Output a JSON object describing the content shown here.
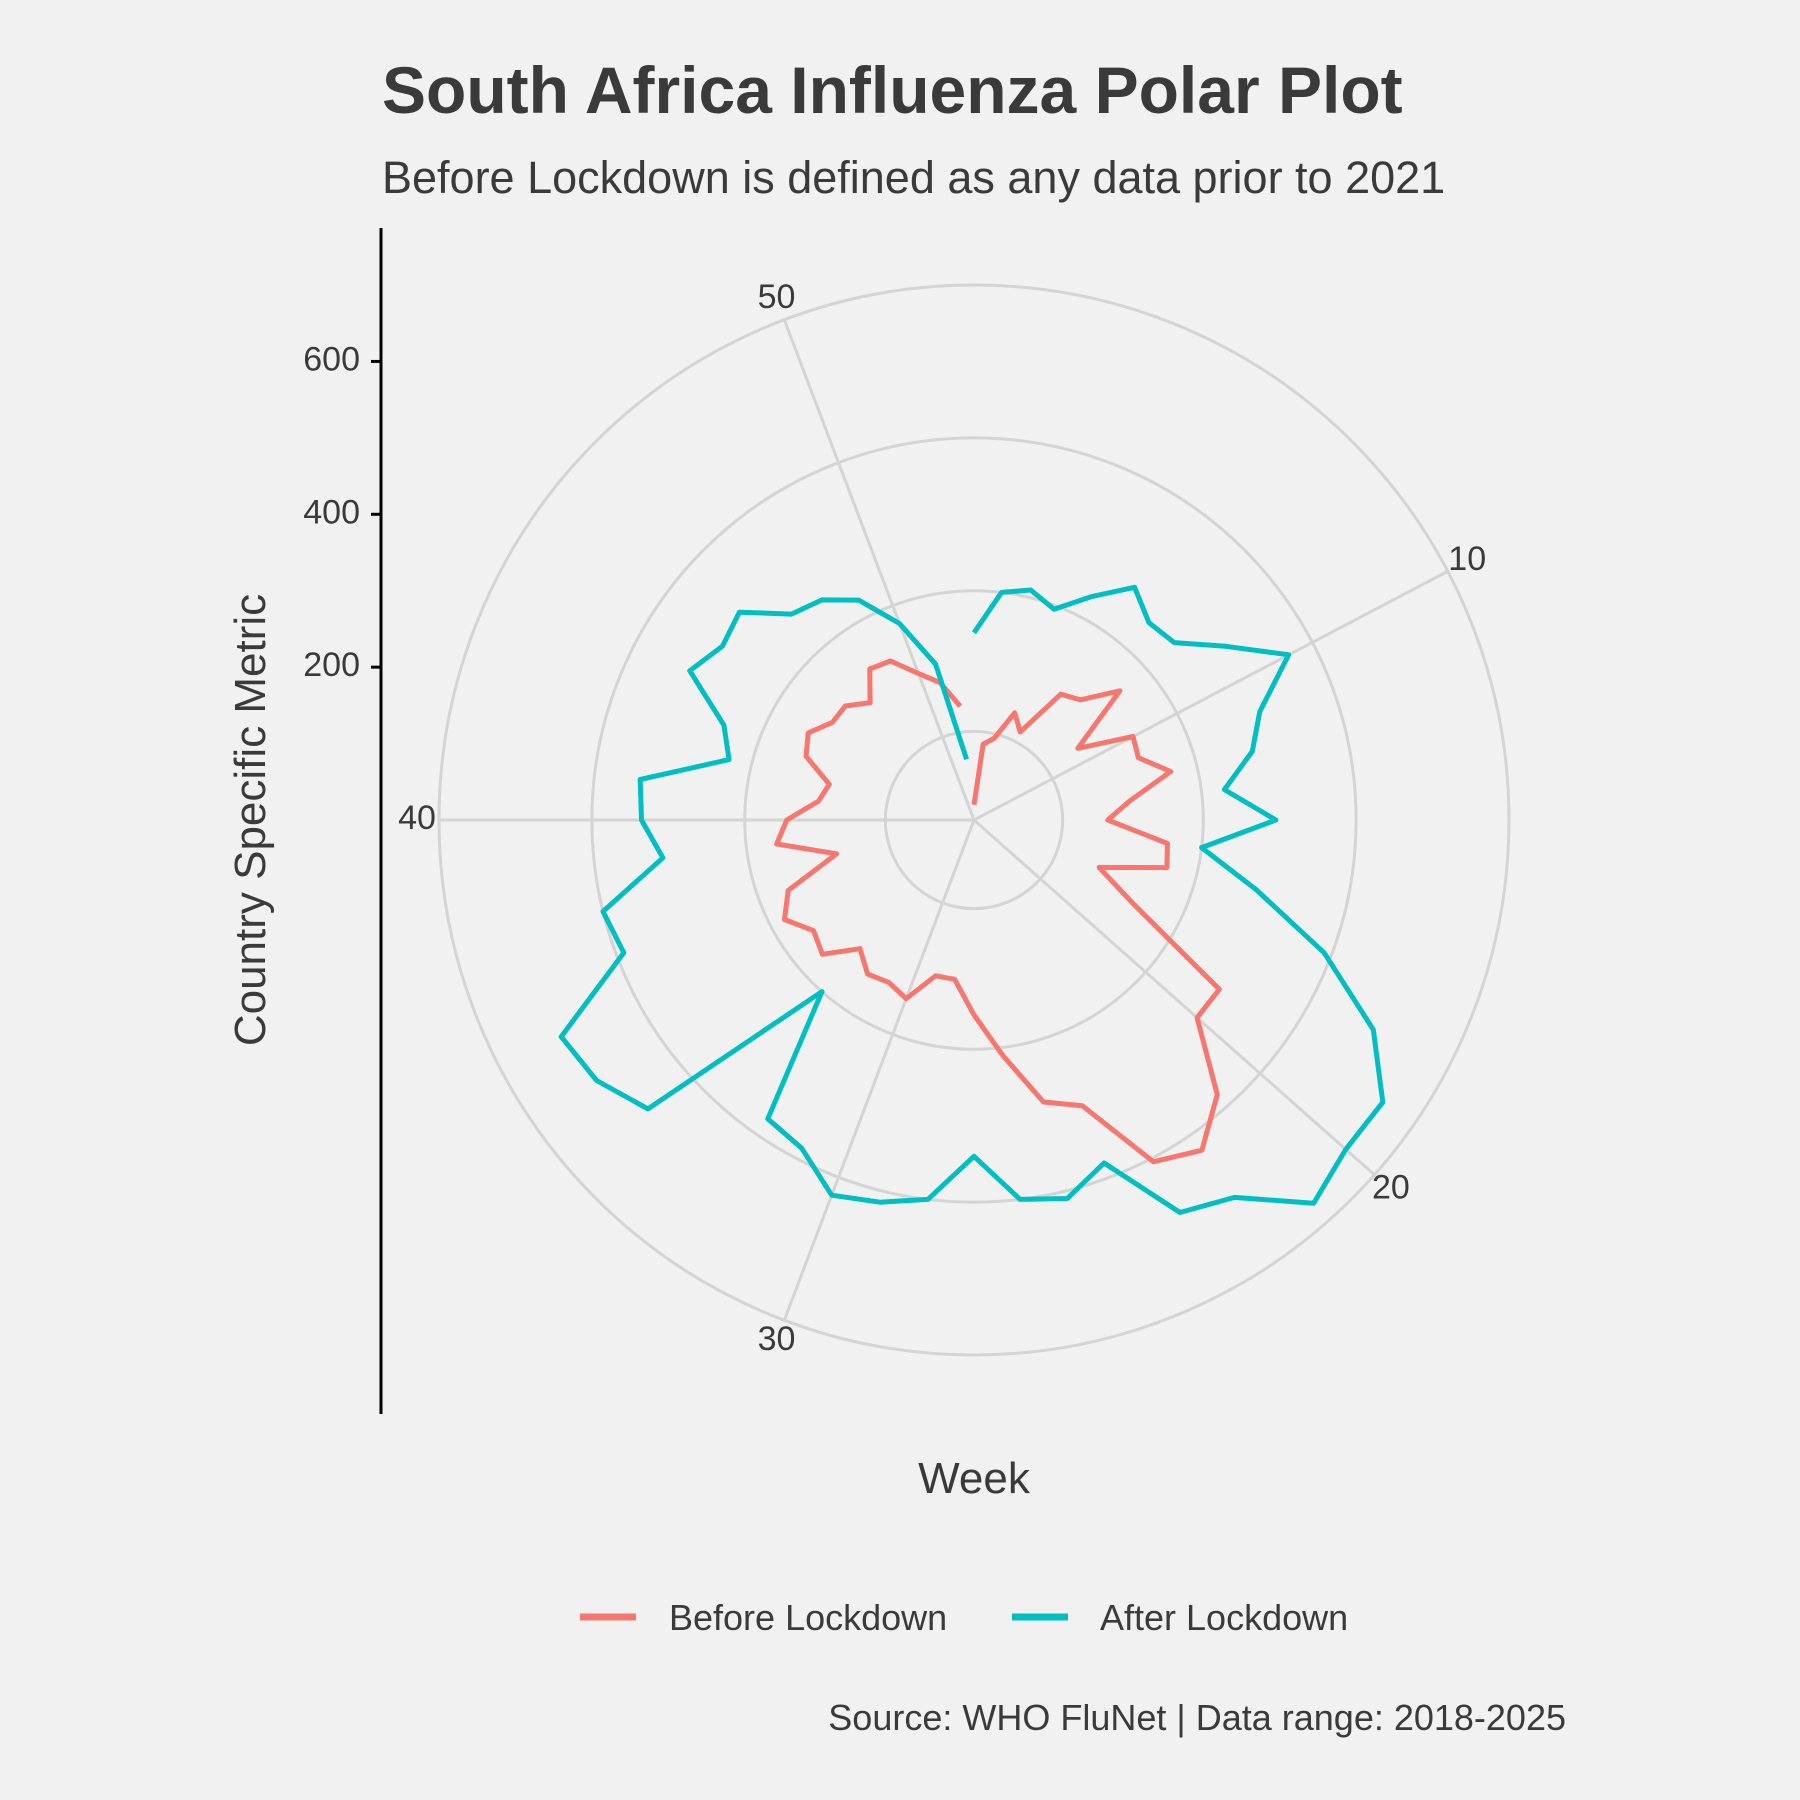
{
  "title": "South Africa Influenza Polar Plot",
  "subtitle": "Before Lockdown is defined as any data prior to 2021",
  "caption": "Source: WHO FluNet | Data range: 2018-2025",
  "colors": {
    "background": "#f1f1f1",
    "grid": "#d4d4d4",
    "text": "#3a3a3a",
    "axis": "#000000",
    "before": "#f8766d",
    "after": "#00bfc4"
  },
  "chart_data": {
    "type": "line",
    "coordinate_system": "polar",
    "xlabel": "Week",
    "ylabel": "Country Specific Metric",
    "theta_ticks": [
      10,
      20,
      30,
      40,
      50
    ],
    "theta_range": [
      1,
      53
    ],
    "r_ticks": [
      200,
      400,
      600
    ],
    "r_range": [
      0,
      700
    ],
    "r_gridlines": [
      116,
      300,
      500,
      700
    ],
    "legend_position": "bottom",
    "series": [
      {
        "name": "Before Lockdown",
        "x": [
          1,
          2,
          3,
          4,
          5,
          6,
          7,
          8,
          9,
          10,
          11,
          12,
          13,
          14,
          15,
          16,
          17,
          18,
          19,
          20,
          21,
          22,
          23,
          24,
          25,
          26,
          27,
          28,
          29,
          30,
          31,
          32,
          33,
          34,
          35,
          36,
          37,
          38,
          39,
          40,
          41,
          42,
          43,
          44,
          45,
          46,
          47,
          48,
          49,
          50,
          51,
          52
        ],
        "values": [
          20,
          100,
          110,
          150,
          130,
          200,
          210,
          255,
          165,
          235,
          230,
          265,
          205,
          175,
          255,
          260,
          175,
          235,
          390,
          390,
          480,
          525,
          505,
          400,
          380,
          310,
          255,
          210,
          210,
          250,
          240,
          245,
          225,
          265,
          255,
          280,
          260,
          185,
          260,
          245,
          205,
          195,
          235,
          245,
          225,
          225,
          205,
          240,
          235,
          205,
          185,
          150
        ]
      },
      {
        "name": "After Lockdown",
        "x": [
          1,
          2,
          3,
          4,
          5,
          6,
          7,
          8,
          9,
          10,
          11,
          12,
          13,
          14,
          15,
          16,
          17,
          18,
          19,
          20,
          21,
          22,
          23,
          24,
          25,
          26,
          27,
          28,
          29,
          30,
          31,
          32,
          33,
          34,
          35,
          36,
          37,
          38,
          39,
          40,
          41,
          42,
          43,
          44,
          45,
          46,
          47,
          48,
          49,
          50,
          51,
          52
        ],
        "values": [
          245,
          300,
          310,
          295,
          330,
          370,
          345,
          350,
          400,
          465,
          400,
          375,
          330,
          395,
          300,
          380,
          490,
          590,
          650,
          650,
          670,
          600,
          580,
          480,
          510,
          500,
          440,
          500,
          515,
          525,
          485,
          475,
          300,
          570,
          600,
          610,
          490,
          500,
          410,
          435,
          440,
          330,
          350,
          420,
          400,
          410,
          360,
          350,
          325,
          275,
          210,
          80
        ]
      }
    ]
  }
}
